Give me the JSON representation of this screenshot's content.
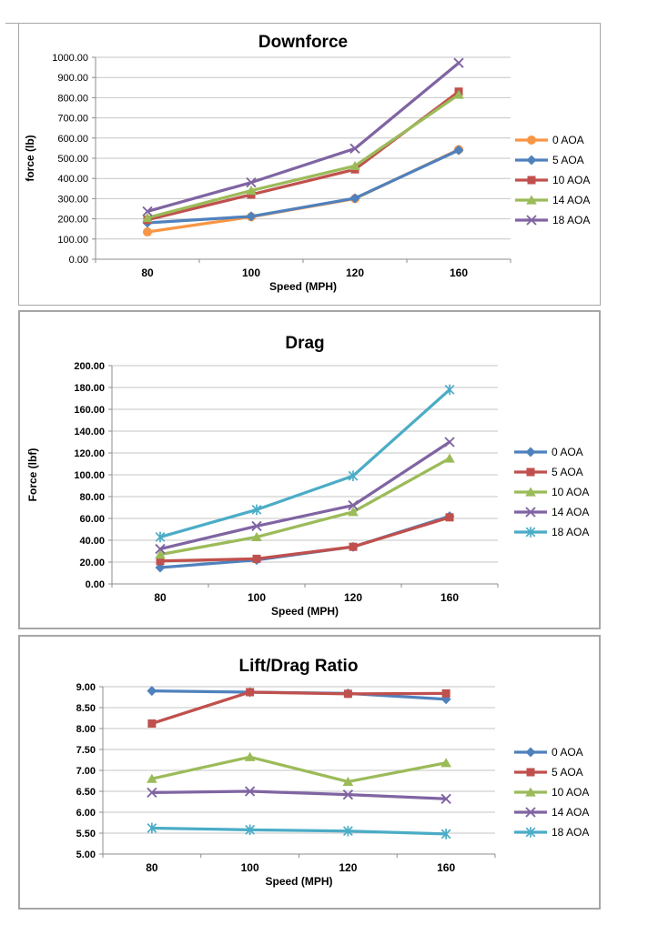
{
  "page": {
    "background": "#FFFFFF",
    "chart_border_color": "#A6A6A6",
    "gridline_color": "#C6C6C6",
    "axis_color": "#8C8C8C",
    "text_color": "#000000"
  },
  "chart_data": [
    {
      "type": "line",
      "title": "Downforce",
      "xlabel": "Speed (MPH)",
      "ylabel": "force (lb)",
      "categories": [
        "80",
        "100",
        "120",
        "160"
      ],
      "ylim": [
        0,
        1000
      ],
      "ytick_step": 100,
      "ytick_labels": [
        "1000.00",
        "900.00",
        "800.00",
        "700.00",
        "600.00",
        "500.00",
        "400.00",
        "300.00",
        "200.00",
        "100.00",
        "0.00"
      ],
      "grid": true,
      "legend_position": "right",
      "series": [
        {
          "name": "0 AOA",
          "color": "#F79646",
          "marker": "circle",
          "values": [
            135,
            210,
            300,
            543
          ]
        },
        {
          "name": "5 AOA",
          "color": "#4F81BD",
          "marker": "diamond",
          "values": [
            180,
            212,
            302,
            540
          ]
        },
        {
          "name": "10 AOA",
          "color": "#C0504D",
          "marker": "square",
          "values": [
            195,
            320,
            445,
            830
          ]
        },
        {
          "name": "14 AOA",
          "color": "#9BBB59",
          "marker": "triangle",
          "values": [
            205,
            340,
            462,
            815
          ]
        },
        {
          "name": "18 AOA",
          "color": "#8064A2",
          "marker": "x",
          "values": [
            237,
            380,
            548,
            972
          ]
        }
      ]
    },
    {
      "type": "line",
      "title": "Drag",
      "xlabel": "Speed (MPH)",
      "ylabel": "Force (lbf)",
      "categories": [
        "80",
        "100",
        "120",
        "160"
      ],
      "ylim": [
        0,
        200
      ],
      "ytick_step": 20,
      "ytick_labels": [
        "200.00",
        "180.00",
        "160.00",
        "140.00",
        "120.00",
        "100.00",
        "80.00",
        "60.00",
        "40.00",
        "20.00",
        "0.00"
      ],
      "grid": true,
      "legend_position": "right",
      "series": [
        {
          "name": "0 AOA",
          "color": "#4F81BD",
          "marker": "diamond",
          "values": [
            15,
            22,
            34,
            62
          ]
        },
        {
          "name": "5 AOA",
          "color": "#C0504D",
          "marker": "square",
          "values": [
            21,
            23,
            34,
            61
          ]
        },
        {
          "name": "10 AOA",
          "color": "#9BBB59",
          "marker": "triangle",
          "values": [
            27,
            43,
            66,
            115
          ]
        },
        {
          "name": "14 AOA",
          "color": "#8064A2",
          "marker": "x",
          "values": [
            32,
            53,
            72,
            130
          ]
        },
        {
          "name": "18 AOA",
          "color": "#4BACC6",
          "marker": "star",
          "values": [
            43,
            68,
            99,
            178
          ]
        }
      ]
    },
    {
      "type": "line",
      "title": "Lift/Drag Ratio",
      "xlabel": "Speed (MPH)",
      "ylabel": "",
      "categories": [
        "80",
        "100",
        "120",
        "160"
      ],
      "ylim": [
        5,
        9
      ],
      "ytick_step": 0.5,
      "ytick_labels": [
        "9.00",
        "8.50",
        "8.00",
        "7.50",
        "7.00",
        "6.50",
        "6.00",
        "5.50",
        "5.00"
      ],
      "grid": true,
      "legend_position": "right",
      "series": [
        {
          "name": "0 AOA",
          "color": "#4F81BD",
          "marker": "diamond",
          "values": [
            8.9,
            8.87,
            8.84,
            8.7
          ]
        },
        {
          "name": "5 AOA",
          "color": "#C0504D",
          "marker": "square",
          "values": [
            8.12,
            8.87,
            8.83,
            8.84
          ]
        },
        {
          "name": "10 AOA",
          "color": "#9BBB59",
          "marker": "triangle",
          "values": [
            6.8,
            7.32,
            6.73,
            7.18
          ]
        },
        {
          "name": "14 AOA",
          "color": "#8064A2",
          "marker": "x",
          "values": [
            6.47,
            6.5,
            6.42,
            6.32
          ]
        },
        {
          "name": "18 AOA",
          "color": "#4BACC6",
          "marker": "star",
          "values": [
            5.62,
            5.58,
            5.55,
            5.48
          ]
        }
      ]
    }
  ]
}
